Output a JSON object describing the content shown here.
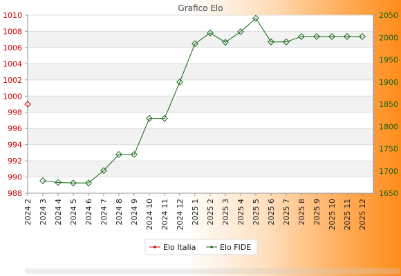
{
  "chart_data": {
    "type": "line",
    "title": "Grafico Elo",
    "categories": [
      "2024 2",
      "2024 3",
      "2024 4",
      "2024 5",
      "2024 6",
      "2024 7",
      "2024 8",
      "2024 9",
      "2024 10",
      "2024 11",
      "2024 12",
      "2025 1",
      "2025 2",
      "2025 3",
      "2025 4",
      "2025 5",
      "2025 6",
      "2025 7",
      "2025 8",
      "2025 9",
      "2025 10",
      "2025 11",
      "2025 12"
    ],
    "y_left": {
      "ylim": [
        988,
        1010
      ],
      "ticks": [
        988,
        990,
        992,
        994,
        996,
        998,
        1000,
        1002,
        1004,
        1006,
        1008,
        1010
      ],
      "color": "#cc0000"
    },
    "y_right": {
      "ylim": [
        1650,
        2050
      ],
      "ticks": [
        1650,
        1700,
        1750,
        1800,
        1850,
        1900,
        1950,
        2000,
        2050
      ],
      "color": "#116611"
    },
    "grid": true,
    "legend": "bottom-center",
    "series": [
      {
        "name": "Elo Italia",
        "axis": "left",
        "color": "#cc0000",
        "values": [
          999,
          null,
          null,
          null,
          null,
          null,
          null,
          null,
          null,
          null,
          null,
          null,
          null,
          null,
          null,
          null,
          null,
          null,
          null,
          null,
          null,
          null,
          null
        ]
      },
      {
        "name": "Elo FIDE",
        "axis": "right",
        "color": "#116611",
        "values": [
          null,
          1678,
          1674,
          1673,
          1673,
          1701,
          1737,
          1737,
          1818,
          1818,
          1900,
          1986,
          2010,
          1989,
          2013,
          2043,
          1990,
          1990,
          2002,
          2002,
          2002,
          2002,
          2002
        ]
      }
    ]
  }
}
